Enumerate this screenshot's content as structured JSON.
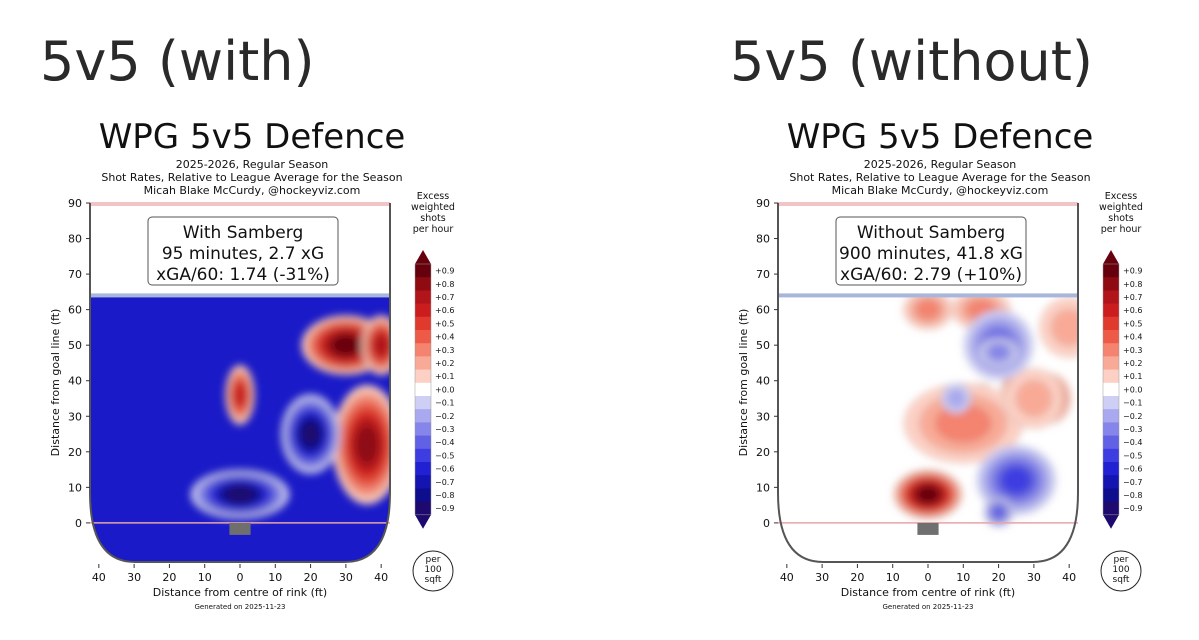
{
  "headings": [
    "5v5 (with)",
    "5v5 (without)"
  ],
  "colorbar": {
    "title": [
      "Excess",
      "weighted",
      "shots",
      "per hour"
    ],
    "ticks": [
      "+0.9",
      "+0.8",
      "+0.7",
      "+0.6",
      "+0.5",
      "+0.4",
      "+0.3",
      "+0.2",
      "+0.1",
      "+0.0",
      "−0.1",
      "−0.2",
      "−0.3",
      "−0.4",
      "−0.5",
      "−0.6",
      "−0.7",
      "−0.8",
      "−0.9"
    ],
    "colors": [
      "#67000d",
      "#8e0b12",
      "#b1141a",
      "#cb1d1e",
      "#e03a2f",
      "#ed5b48",
      "#f4836f",
      "#f9aa97",
      "#fcd0c4",
      "#ffffff",
      "#cfcff6",
      "#a9a9ef",
      "#8585ea",
      "#6161e6",
      "#3d3de2",
      "#2121d3",
      "#1414b0",
      "#0d0d8e",
      "#1e0a6e"
    ],
    "unit": [
      "per",
      "100",
      "sqft"
    ]
  },
  "chart_data": [
    {
      "type": "heatmap",
      "title": "WPG 5v5 Defence",
      "subtitle": [
        "2025-2026, Regular Season",
        "Shot Rates, Relative to League Average for the Season",
        "Micah Blake McCurdy, @hockeyviz.com"
      ],
      "annotation": [
        "With Samberg",
        "95 minutes, 2.7 xG",
        "xGA/60: 1.74 (-31%)"
      ],
      "xlabel": "Distance from centre of rink (ft)",
      "ylabel": "Distance from goal line (ft)",
      "xticks": [
        40,
        30,
        20,
        10,
        0,
        10,
        20,
        30,
        40
      ],
      "yticks": [
        0,
        10,
        20,
        30,
        40,
        50,
        60,
        70,
        80,
        90
      ],
      "xlim": [
        -42.5,
        42.5
      ],
      "ylim": [
        -11,
        90
      ],
      "blue_line": 64,
      "footer": "Generated on 2025-11-23",
      "background": "#1a1ac8",
      "hotspots": [
        {
          "x": 30,
          "y": 50,
          "v": 0.9,
          "rx": 9,
          "ry": 6
        },
        {
          "x": 0,
          "y": 36,
          "v": 0.6,
          "rx": 3,
          "ry": 6
        },
        {
          "x": 36,
          "y": 22,
          "v": 0.8,
          "rx": 7,
          "ry": 12
        },
        {
          "x": 40,
          "y": 50,
          "v": 0.7,
          "rx": 4,
          "ry": 6
        },
        {
          "x": 20,
          "y": 25,
          "v": -0.9,
          "rx": 6,
          "ry": 8
        },
        {
          "x": 0,
          "y": 8,
          "v": -0.9,
          "rx": 10,
          "ry": 5
        }
      ]
    },
    {
      "type": "heatmap",
      "title": "WPG 5v5 Defence",
      "subtitle": [
        "2025-2026, Regular Season",
        "Shot Rates, Relative to League Average for the Season",
        "Micah Blake McCurdy, @hockeyviz.com"
      ],
      "annotation": [
        "Without Samberg",
        "900 minutes, 41.8 xG",
        "xGA/60: 2.79 (+10%)"
      ],
      "xlabel": "Distance from centre of rink (ft)",
      "ylabel": "Distance from goal line (ft)",
      "xticks": [
        40,
        30,
        20,
        10,
        0,
        10,
        20,
        30,
        40
      ],
      "yticks": [
        0,
        10,
        20,
        30,
        40,
        50,
        60,
        70,
        80,
        90
      ],
      "xlim": [
        -42.5,
        42.5
      ],
      "ylim": [
        -11,
        90
      ],
      "blue_line": 64,
      "footer": "Generated on 2025-11-23",
      "background": "#ffffff",
      "hotspots": [
        {
          "x": 0,
          "y": 8,
          "v": 0.9,
          "rx": 7,
          "ry": 5
        },
        {
          "x": 35,
          "y": 35,
          "v": 0.5,
          "rx": 4,
          "ry": 5
        },
        {
          "x": 15,
          "y": 35,
          "v": 0.4,
          "rx": 3,
          "ry": 3
        },
        {
          "x": 25,
          "y": 38,
          "v": 0.4,
          "rx": 3,
          "ry": 3
        },
        {
          "x": 15,
          "y": 60,
          "v": 0.3,
          "rx": 6,
          "ry": 4
        },
        {
          "x": 0,
          "y": 60,
          "v": 0.3,
          "rx": 5,
          "ry": 4
        },
        {
          "x": 40,
          "y": 55,
          "v": 0.2,
          "rx": 6,
          "ry": 6
        },
        {
          "x": 10,
          "y": 28,
          "v": 0.3,
          "rx": 12,
          "ry": 8
        },
        {
          "x": 30,
          "y": 35,
          "v": 0.2,
          "rx": 6,
          "ry": 6
        },
        {
          "x": 25,
          "y": 12,
          "v": -0.5,
          "rx": 8,
          "ry": 7
        },
        {
          "x": 20,
          "y": 50,
          "v": -0.4,
          "rx": 7,
          "ry": 7
        },
        {
          "x": 20,
          "y": 48,
          "v": -0.3,
          "rx": 4,
          "ry": 3
        },
        {
          "x": 20,
          "y": 3,
          "v": -0.4,
          "rx": 3,
          "ry": 3
        },
        {
          "x": 8,
          "y": 35,
          "v": -0.2,
          "rx": 3,
          "ry": 3
        }
      ]
    }
  ]
}
